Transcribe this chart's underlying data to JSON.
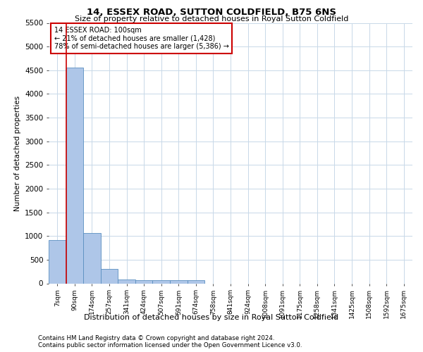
{
  "title": "14, ESSEX ROAD, SUTTON COLDFIELD, B75 6NS",
  "subtitle": "Size of property relative to detached houses in Royal Sutton Coldfield",
  "xlabel_dist": "Distribution of detached houses by size in Royal Sutton Coldfield",
  "ylabel": "Number of detached properties",
  "footer_line1": "Contains HM Land Registry data © Crown copyright and database right 2024.",
  "footer_line2": "Contains public sector information licensed under the Open Government Licence v3.0.",
  "annotation_title": "14 ESSEX ROAD: 100sqm",
  "annotation_line2": "← 21% of detached houses are smaller (1,428)",
  "annotation_line3": "78% of semi-detached houses are larger (5,386) →",
  "bin_labels": [
    "7sqm",
    "90sqm",
    "174sqm",
    "257sqm",
    "341sqm",
    "424sqm",
    "507sqm",
    "591sqm",
    "674sqm",
    "758sqm",
    "841sqm",
    "924sqm",
    "1008sqm",
    "1091sqm",
    "1175sqm",
    "1258sqm",
    "1341sqm",
    "1425sqm",
    "1508sqm",
    "1592sqm",
    "1675sqm"
  ],
  "bar_values": [
    920,
    4550,
    1060,
    300,
    80,
    62,
    62,
    62,
    62,
    0,
    0,
    0,
    0,
    0,
    0,
    0,
    0,
    0,
    0,
    0,
    0
  ],
  "bar_color": "#aec6e8",
  "bar_edge_color": "#5a8fc0",
  "vline_color": "#cc0000",
  "vline_x_index": 1,
  "ylim": [
    0,
    5500
  ],
  "yticks": [
    0,
    500,
    1000,
    1500,
    2000,
    2500,
    3000,
    3500,
    4000,
    4500,
    5000,
    5500
  ],
  "annotation_box_color": "#ffffff",
  "annotation_box_edge": "#cc0000",
  "bg_color": "#ffffff",
  "grid_color": "#c8d8e8"
}
